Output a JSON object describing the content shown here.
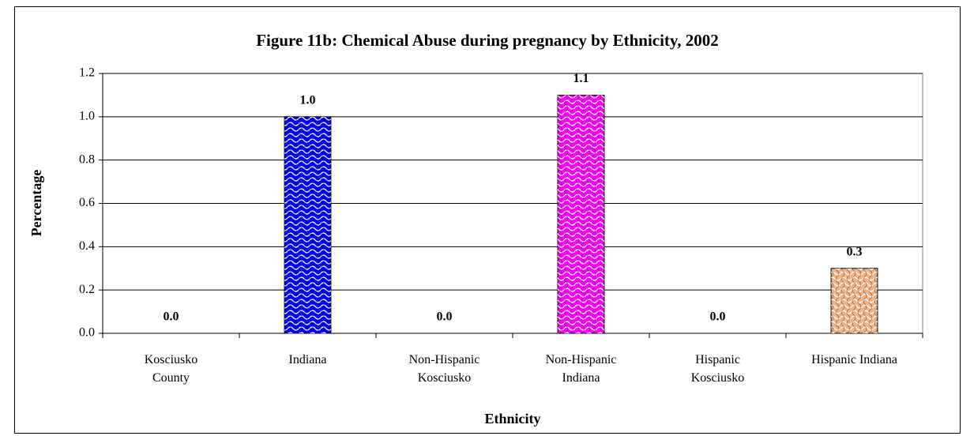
{
  "chart_data": {
    "type": "bar",
    "title": "Figure 11b: Chemical Abuse during pregnancy by Ethnicity, 2002",
    "x_label": "Ethnicity",
    "y_label": "Percentage",
    "categories": [
      "Kosciusko\nCounty",
      "Indiana",
      "Non-Hispanic\nKosciusko",
      "Non-Hispanic\nIndiana",
      "Hispanic\nKosciusko",
      "Hispanic Indiana"
    ],
    "values": [
      0,
      1.0,
      0,
      1.1,
      0,
      0.3
    ],
    "value_labels": [
      "0.0",
      "1.0",
      "0.0",
      "1.1",
      "0.0",
      "0.3"
    ],
    "colors": [
      "#0000ff",
      "#0000ff",
      "#ff00ff",
      "#ff00ff",
      "#f4b183",
      "#f4b183"
    ],
    "ylim": [
      0,
      1.2
    ],
    "yticks": [
      {
        "value": 0,
        "label": "0.0"
      },
      0.2,
      0.4,
      0.6,
      0.8,
      {
        "value": 1,
        "label": "1.0"
      },
      1.2
    ],
    "grid": true
  }
}
